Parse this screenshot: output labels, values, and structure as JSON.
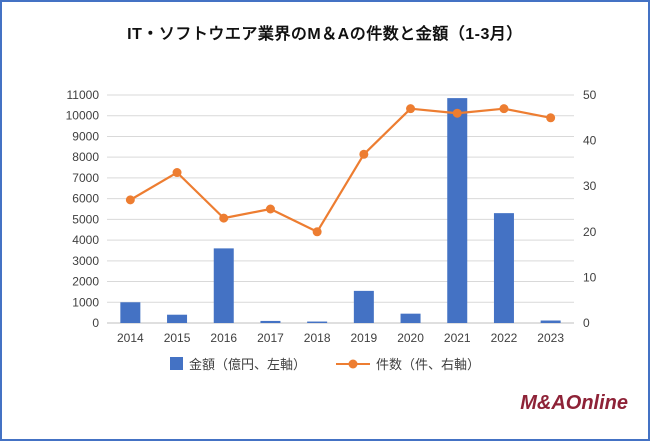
{
  "title": "IT・ソフトウエア業界のM＆Aの件数と金額（1-3月）",
  "logo_text": "M&AOnline",
  "legend": {
    "bar_label": "金額（億円、左軸）",
    "line_label": "件数（件、右軸）"
  },
  "colors": {
    "bar": "#4472C4",
    "line": "#ED7D31",
    "border": "#4472C4",
    "grid": "#D9D9D9",
    "zero_line": "#BFBFBF",
    "tick_text": "#404040",
    "logo": "#8E2237"
  },
  "chart_data": {
    "type": "combo-bar-line",
    "title": "IT・ソフトウエア業界のM＆Aの件数と金額（1-3月）",
    "categories": [
      "2014",
      "2015",
      "2016",
      "2017",
      "2018",
      "2019",
      "2020",
      "2021",
      "2022",
      "2023"
    ],
    "series": [
      {
        "name": "金額（億円、左軸）",
        "type": "bar",
        "axis": "left",
        "values": [
          1000,
          400,
          3600,
          100,
          70,
          1550,
          450,
          10850,
          5300,
          120
        ]
      },
      {
        "name": "件数（件、右軸）",
        "type": "line",
        "axis": "right",
        "values": [
          27,
          33,
          23,
          25,
          20,
          37,
          47,
          46,
          47,
          45
        ]
      }
    ],
    "left_axis": {
      "min": 0,
      "max": 11000,
      "step": 1000
    },
    "right_axis": {
      "min": 0,
      "max": 50,
      "step": 10
    },
    "grid": true,
    "legend_position": "bottom"
  }
}
